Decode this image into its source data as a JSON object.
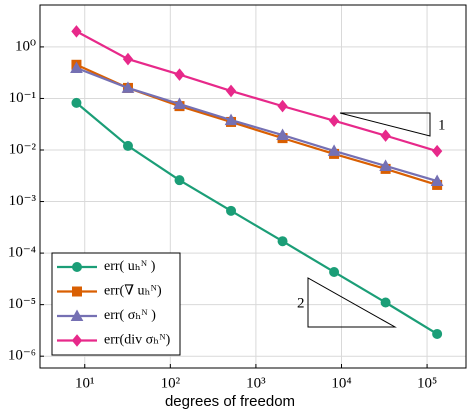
{
  "chart_data": {
    "type": "line",
    "xscale": "log",
    "yscale": "log",
    "grid": true,
    "x_label": "degrees of freedom",
    "x": [
      8,
      32,
      128,
      512,
      2048,
      8192,
      32768,
      131072
    ],
    "xlim": [
      3,
      285000
    ],
    "ylim": [
      5.9e-07,
      6.5
    ],
    "xticks": [
      {
        "value": 10,
        "label": "10¹"
      },
      {
        "value": 100,
        "label": "10²"
      },
      {
        "value": 1000,
        "label": "10³"
      },
      {
        "value": 10000,
        "label": "10⁴"
      },
      {
        "value": 100000,
        "label": "10⁵"
      }
    ],
    "yticks": [
      {
        "value": 1e-06,
        "label": "10⁻⁶"
      },
      {
        "value": 1e-05,
        "label": "10⁻⁵"
      },
      {
        "value": 0.0001,
        "label": "10⁻⁴"
      },
      {
        "value": 0.001,
        "label": "10⁻³"
      },
      {
        "value": 0.01,
        "label": "10⁻²"
      },
      {
        "value": 0.1,
        "label": "10⁻¹"
      },
      {
        "value": 1,
        "label": "10⁰"
      }
    ],
    "legend": "lower left",
    "series": [
      {
        "name": "err( uₕᴺ )",
        "color": "#1b9e77",
        "marker": "circle",
        "values": [
          0.082,
          0.012,
          0.0026,
          0.00066,
          0.00017,
          4.3e-05,
          1.1e-05,
          2.7e-06
        ]
      },
      {
        "name": "err(∇ uₕᴺ)",
        "color": "#d95f02",
        "marker": "square",
        "values": [
          0.45,
          0.16,
          0.071,
          0.035,
          0.017,
          0.0084,
          0.0043,
          0.0021
        ]
      },
      {
        "name": "err( σₕᴺ )",
        "color": "#7570b3",
        "marker": "triangle",
        "values": [
          0.39,
          0.16,
          0.078,
          0.038,
          0.0195,
          0.0096,
          0.0049,
          0.0025
        ]
      },
      {
        "name": "err(div σₕᴺ)",
        "color": "#e7298a",
        "marker": "diamond",
        "values": [
          2.0,
          0.58,
          0.29,
          0.14,
          0.071,
          0.037,
          0.019,
          0.0095
        ]
      }
    ],
    "annotations": [
      "1",
      "2"
    ]
  }
}
